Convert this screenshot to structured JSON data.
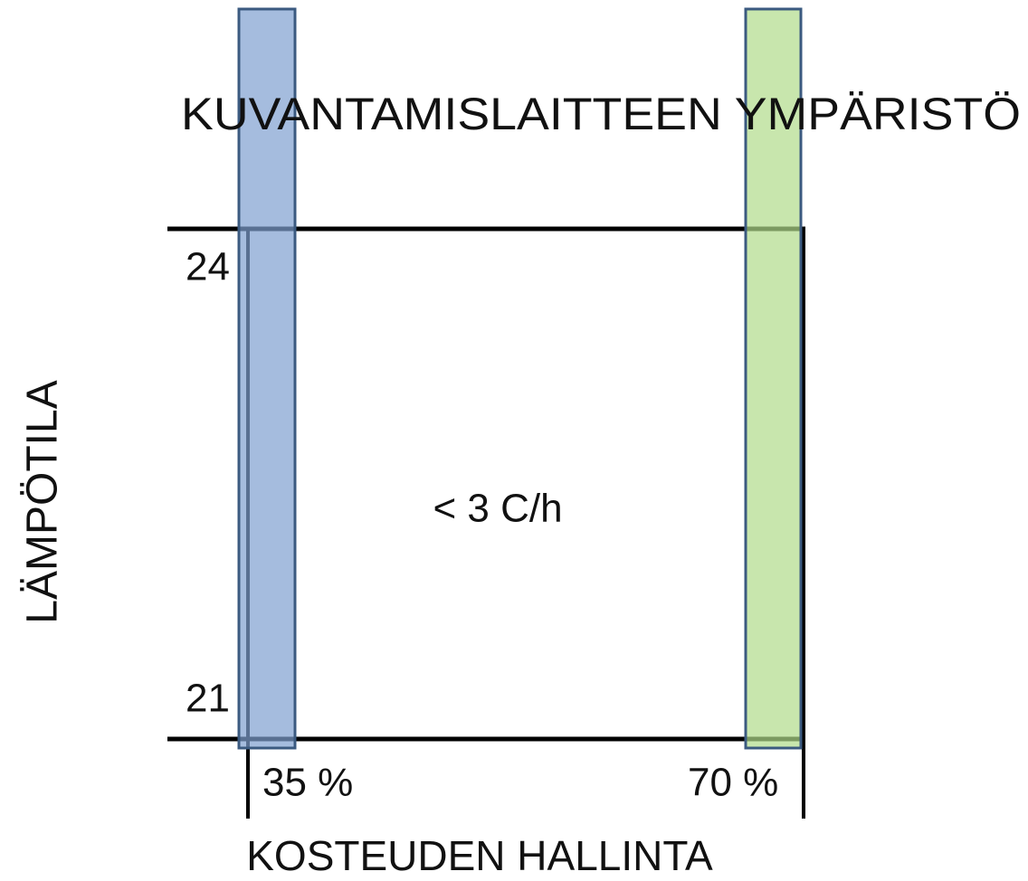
{
  "title": "KUVANTAMISLAITTEEN YMPÄRISTÖ",
  "y_axis": {
    "label": "LÄMPÖTILA",
    "top": "24",
    "bottom": "21"
  },
  "x_axis": {
    "label": "KOSTEUDEN HALLINTA",
    "left": "35 %",
    "right": "70 %"
  },
  "center": "< 3 C/h"
}
